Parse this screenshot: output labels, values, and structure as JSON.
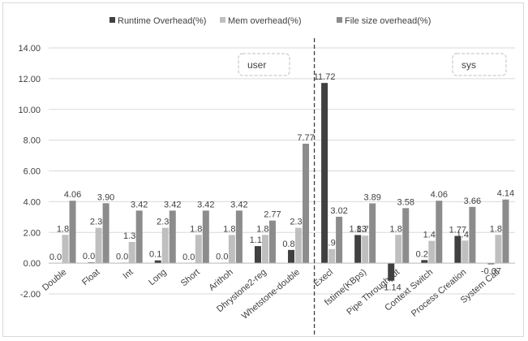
{
  "chart_data": {
    "type": "bar",
    "categories": [
      "Double",
      "Float",
      "Int",
      "Long",
      "Short",
      "Arithoh",
      "Dhrystone2-reg",
      "Whetstone-double",
      "Execl",
      "fstime(KBps)",
      "Pipe Throughput",
      "Context Switch",
      "Process Creation",
      "System Call"
    ],
    "series": [
      {
        "name": "Runtime Overhead(%)",
        "color": "#404040",
        "values": [
          0.01,
          0.05,
          0.03,
          0.18,
          0.01,
          0.02,
          1.11,
          0.86,
          11.72,
          1.83,
          -1.14,
          0.2,
          1.77,
          -0.07
        ]
      },
      {
        "name": "Mem overhead(%)",
        "color": "#bfbfbf",
        "values": [
          1.84,
          2.3,
          1.38,
          2.3,
          1.84,
          1.83,
          1.84,
          2.3,
          0.92,
          1.79,
          1.84,
          1.45,
          1.47,
          1.84
        ]
      },
      {
        "name": "File size overhead(%)",
        "color": "#8c8c8c",
        "values": [
          4.06,
          3.9,
          3.42,
          3.42,
          3.42,
          3.42,
          2.77,
          7.77,
          3.02,
          3.89,
          3.58,
          4.06,
          3.66,
          4.14
        ]
      }
    ],
    "labels": [
      [
        "0.01",
        "0.05",
        "0.03",
        "0.18",
        "0.01",
        "0.02",
        "1.11",
        "0.86",
        "11.72",
        "1.83",
        "-1.14",
        "0.20",
        "1.77",
        "-0.07"
      ],
      [
        "1.84",
        "2.30",
        "1.38",
        "2.30",
        "1.84",
        "1.83",
        "1.84",
        "2.30",
        "0.92",
        "1.79",
        "1.84",
        "1.45",
        "1.47",
        "1.84"
      ],
      [
        "4.06",
        "3.90",
        "3.42",
        "3.42",
        "3.42",
        "3.42",
        "2.77",
        "7.77",
        "3.02",
        "3.89",
        "3.58",
        "4.06",
        "3.66",
        "4.14"
      ]
    ],
    "ylim": [
      -2,
      14
    ],
    "yticks": [
      "-2.00",
      "0.00",
      "2.00",
      "4.00",
      "6.00",
      "8.00",
      "10.00",
      "12.00",
      "14.00"
    ],
    "grid": true,
    "legend_position": "top",
    "regions": [
      "user",
      "sys"
    ]
  }
}
